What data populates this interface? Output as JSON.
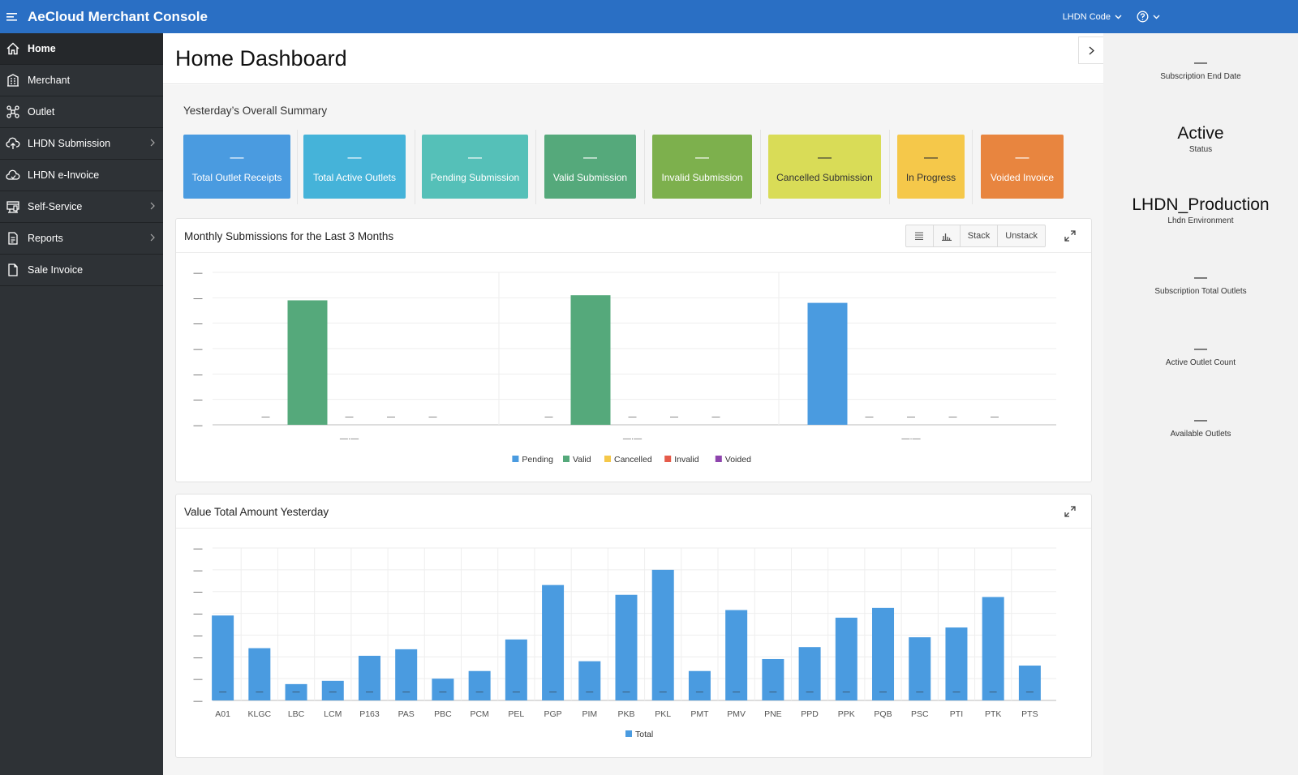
{
  "header": {
    "app_title": "AeCloud Merchant Console",
    "lhdn_code_label": "LHDN Code",
    "help_icon": "help-circle-icon",
    "menu_icon": "hamburger-icon",
    "background": "#2a6fc4"
  },
  "sidebar": {
    "items": [
      {
        "label": "Home",
        "icon": "home-icon",
        "active": true,
        "has_submenu": false
      },
      {
        "label": "Merchant",
        "icon": "building-icon",
        "active": false,
        "has_submenu": false
      },
      {
        "label": "Outlet",
        "icon": "network-icon",
        "active": false,
        "has_submenu": false
      },
      {
        "label": "LHDN Submission",
        "icon": "cloud-upload-icon",
        "active": false,
        "has_submenu": true
      },
      {
        "label": "LHDN e-Invoice",
        "icon": "cloud-icon",
        "active": false,
        "has_submenu": false
      },
      {
        "label": "Self-Service",
        "icon": "kiosk-icon",
        "active": false,
        "has_submenu": true
      },
      {
        "label": "Reports",
        "icon": "report-icon",
        "active": false,
        "has_submenu": true
      },
      {
        "label": "Sale Invoice",
        "icon": "document-icon",
        "active": false,
        "has_submenu": false
      }
    ]
  },
  "page": {
    "title": "Home Dashboard"
  },
  "summary": {
    "title": "Yesterday’s Overall Summary",
    "tiles": [
      {
        "label": "Total Outlet Receipts",
        "value": "—",
        "color": "#4a9be0"
      },
      {
        "label": "Total Active Outlets",
        "value": "—",
        "color": "#45b3d9"
      },
      {
        "label": "Pending Submission",
        "value": "—",
        "color": "#55c0b8"
      },
      {
        "label": "Valid Submission",
        "value": "—",
        "color": "#55a97b"
      },
      {
        "label": "Invalid Submission",
        "value": "—",
        "color": "#7db04d"
      },
      {
        "label": "Cancelled Submission",
        "value": "—",
        "color": "#d9dc57"
      },
      {
        "label": "In Progress",
        "value": "—",
        "color": "#f5c84a"
      },
      {
        "label": "Voided Invoice",
        "value": "—",
        "color": "#e8853f"
      }
    ]
  },
  "monthly_panel": {
    "title": "Monthly Submissions for the Last 3 Months",
    "list_icon": "list-view-icon",
    "chart_icon": "bar-chart-icon",
    "stack_label": "Stack",
    "unstack_label": "Unstack",
    "expand_icon": "expand-icon"
  },
  "value_panel": {
    "title": "Value Total Amount Yesterday",
    "expand_icon": "expand-icon"
  },
  "chart_data": [
    {
      "type": "bar",
      "title": "Monthly Submissions for the Last 3 Months",
      "categories": [
        "—·—",
        "—·—",
        "—·—"
      ],
      "y_tick_labels": [
        "—",
        "—",
        "—",
        "—",
        "—",
        "—",
        "—"
      ],
      "ylim": [
        0,
        6
      ],
      "grid": true,
      "legend_position": "bottom",
      "series": [
        {
          "name": "Pending",
          "color": "#4a9be0",
          "values": [
            0,
            0,
            4.8
          ],
          "labels": [
            "—",
            "—",
            ""
          ]
        },
        {
          "name": "Valid",
          "color": "#55a97b",
          "values": [
            4.9,
            5.1,
            0
          ],
          "labels": [
            "",
            "",
            "—"
          ]
        },
        {
          "name": "Cancelled",
          "color": "#f5c84a",
          "values": [
            0,
            0,
            0
          ],
          "labels": [
            "—",
            "—",
            "—"
          ]
        },
        {
          "name": "Invalid",
          "color": "#e55b4a",
          "values": [
            0,
            0,
            0
          ],
          "labels": [
            "—",
            "—",
            "—"
          ]
        },
        {
          "name": "Voided",
          "color": "#8e44ad",
          "values": [
            0,
            0,
            0
          ],
          "labels": [
            "—",
            "—",
            "—"
          ]
        }
      ]
    },
    {
      "type": "bar",
      "title": "Value Total Amount Yesterday",
      "categories": [
        "A01",
        "KLGC",
        "LBC",
        "LCM",
        "P163",
        "PAS",
        "PBC",
        "PCM",
        "PEL",
        "PGP",
        "PIM",
        "PKB",
        "PKL",
        "PMT",
        "PMV",
        "PNE",
        "PPD",
        "PPK",
        "PQB",
        "PSC",
        "PTI",
        "PTK",
        "PTS"
      ],
      "y_tick_labels": [
        "—",
        "—",
        "—",
        "—",
        "—",
        "—",
        "—",
        "—"
      ],
      "ylim": [
        0,
        7
      ],
      "grid": true,
      "legend_position": "bottom",
      "series": [
        {
          "name": "Total",
          "color": "#4a9be0",
          "values": [
            3.9,
            2.4,
            0.75,
            0.9,
            2.05,
            2.35,
            1.0,
            1.35,
            2.8,
            5.3,
            1.8,
            4.85,
            6.0,
            1.35,
            4.15,
            1.9,
            2.45,
            3.8,
            4.25,
            2.9,
            3.35,
            4.75,
            1.6
          ],
          "labels": [
            "—",
            "—",
            "—",
            "—",
            "—",
            "—",
            "—",
            "—",
            "—",
            "—",
            "—",
            "—",
            "—",
            "—",
            "—",
            "—",
            "—",
            "—",
            "—",
            "—",
            "—",
            "—",
            "—"
          ]
        }
      ]
    }
  ],
  "right_pane": {
    "stats": [
      {
        "value": "—",
        "label": "Subscription End Date"
      },
      {
        "value": "Active",
        "label": "Status"
      },
      {
        "value": "LHDN_Production",
        "label": "Lhdn Environment"
      },
      {
        "value": "—",
        "label": "Subscription Total Outlets"
      },
      {
        "value": "—",
        "label": "Active Outlet Count"
      },
      {
        "value": "—",
        "label": "Available Outlets"
      }
    ],
    "collapse_icon": "chevron-right-icon"
  }
}
